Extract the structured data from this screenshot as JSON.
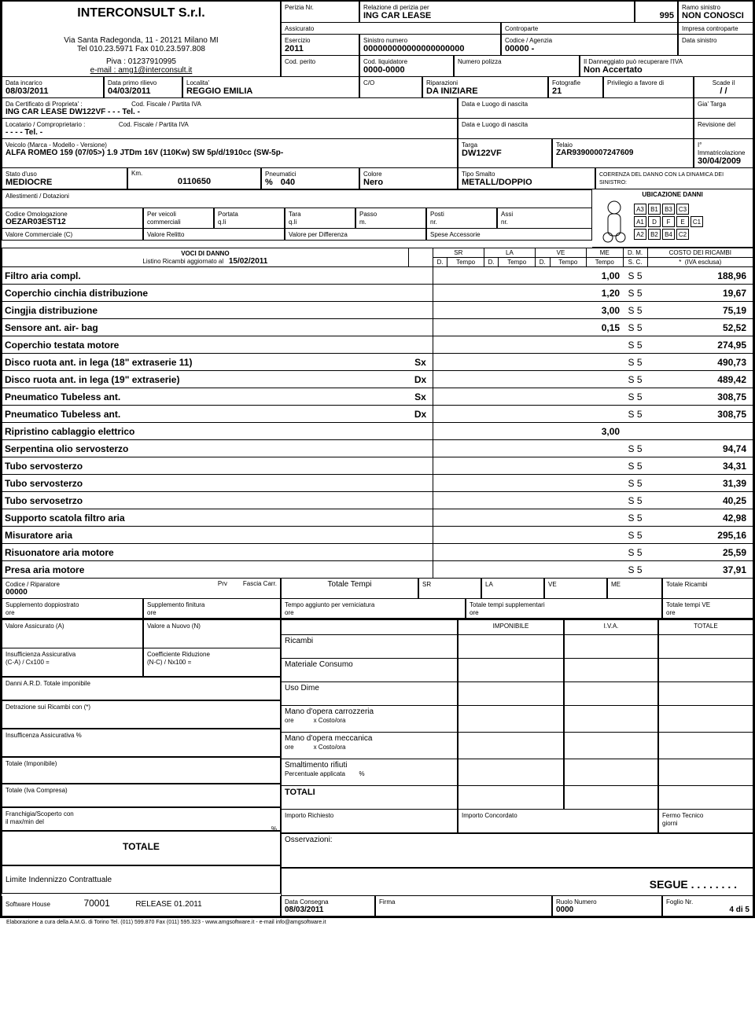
{
  "header": {
    "company": "INTERCONSULT S.r.l.",
    "address": "Via Santa Radegonda, 11 - 20121 Milano MI",
    "tel": "Tel 010.23.5971 Fax 010.23.597.808",
    "piva": "Piva : 01237910995",
    "email_lbl": "e-mail : ",
    "email": "amg1@interconsult.it",
    "perizia_lbl": "Perizia Nr.",
    "relazione_lbl": "Relazione di perizia per",
    "relazione_val": "ING CAR LEASE",
    "num": "995",
    "ramo_lbl": "Ramo sinistro",
    "ramo_val": "NON CONOSCI",
    "assicurato_lbl": "Assicurato",
    "controparte_lbl": "Controparte",
    "impresa_lbl": "Impresa controparte",
    "esercizio_lbl": "Esercizio",
    "esercizio_val": "2011",
    "sinistro_lbl": "Sinistro numero",
    "sinistro_val": "000000000000000000000",
    "codice_lbl": "Codice / Agenzia",
    "codice_val": "00000 -",
    "data_sinistro_lbl": "Data sinistro",
    "cod_perito_lbl": "Cod. perito",
    "cod_liq_lbl": "Cod. liquidatore",
    "cod_liq_val": "0000-0000",
    "num_polizza_lbl": "Numero polizza",
    "dann_lbl": "Il Danneggiato può recuperare l'IVA",
    "dann_val": "Non Accertato"
  },
  "r2": {
    "data_incarico_lbl": "Data incarico",
    "data_incarico_val": "08/03/2011",
    "data_primo_lbl": "Data primo rilievo",
    "data_primo_val": "04/03/2011",
    "localita_lbl": "Localita'",
    "localita_val": "REGGIO EMILIA",
    "co_lbl": "C/O",
    "rip_lbl": "Riparazioni",
    "rip_val": "DA INIZIARE",
    "foto_lbl": "Fotografie",
    "foto_val": "21",
    "priv_lbl": "Privilegio a favore di",
    "scade_lbl": "Scade il",
    "scade_val": "/  /"
  },
  "r3": {
    "cert_lbl": "Da Certificato di Proprieta' :",
    "cod_fisc_lbl": "Cod. Fiscale / Partita IVA",
    "cert_val": "ING CAR LEASE DW122VF -  -  -  Tel.  -",
    "luogo_lbl": "Data e Luogo di nascita",
    "gia_targa_lbl": "Gia' Targa"
  },
  "r4": {
    "loc_lbl": "Locatario / Comproprietario :",
    "loc_val": "-  -  -  -  Tel.  -",
    "rev_lbl": "Revisione del"
  },
  "r5": {
    "veicolo_lbl": "Veicolo (Marca - Modello - Versione)",
    "veicolo_val": "ALFA ROMEO 159 (07/05>) 1.9 JTDm 16V (110Kw) SW 5p/d/1910cc (SW-5p-",
    "targa_lbl": "Targa",
    "targa_val": "DW122VF",
    "telaio_lbl": "Telaio",
    "telaio_val": "ZAR93900007247609",
    "imm_lbl": "I° Immatricolazione",
    "imm_val": "30/04/2009"
  },
  "r6": {
    "stato_lbl": "Stato d'uso",
    "stato_val": "MEDIOCRE",
    "km_lbl": "Km.",
    "km_val": "0110650",
    "pneu_lbl": "Pneumatici",
    "pneu_pct": "%",
    "pneu_val": "040",
    "colore_lbl": "Colore",
    "colore_val": "Nero",
    "tipo_lbl": "Tipo Smalto",
    "tipo_val": "METALL/DOPPIO",
    "coer_lbl": "COERENZA DEL DANNO CON LA DINAMICA DEI SINISTRO:"
  },
  "r7": {
    "all_lbl": "Allestimenti / Dotazioni",
    "ubi_lbl": "UBICAZIONE DANNI"
  },
  "r8": {
    "cod_om_lbl": "Codice Omologazione",
    "cod_om_val": "OEZAR03EST12",
    "per_lbl": "Per veicoli",
    "per_val": "commerciali",
    "portata_lbl": "Portata",
    "portata_val": "q.li",
    "tara_lbl": "Tara",
    "tara_val": "q.li",
    "passo_lbl": "Passo",
    "passo_val": "m.",
    "posti_lbl": "Posti",
    "posti_val": "nr.",
    "assi_lbl": "Assi",
    "assi_val": "nr."
  },
  "r9": {
    "vc_lbl": "Valore Commerciale (C)",
    "vr_lbl": "Valore Relitto",
    "vd_lbl": "Valore per Differenza",
    "sa_lbl": "Spese Accessorie"
  },
  "dmg": {
    "voci_lbl": "VOCI DI DANNO",
    "listino_lbl": "Listino Ricambi aggiornato al",
    "listino_val": "15/02/2011",
    "sr": "SR",
    "la": "LA",
    "ve": "VE",
    "me": "ME",
    "dm": "D. M.",
    "sc": "S. C.",
    "costo": "COSTO DEI RICAMBI",
    "iva": "(IVA esclusa)",
    "d": "D.",
    "tempo": "Tempo",
    "rows": [
      {
        "desc": "Filtro aria compl.",
        "pos": "",
        "me": "1,00",
        "sc": "S  5",
        "cost": "188,96"
      },
      {
        "desc": "Coperchio cinchia distribuzione",
        "pos": "",
        "me": "1,20",
        "sc": "S  5",
        "cost": "19,67"
      },
      {
        "desc": "Cingjia distribuzione",
        "pos": "",
        "me": "3,00",
        "sc": "S  5",
        "cost": "75,19"
      },
      {
        "desc": "Sensore ant. air- bag",
        "pos": "",
        "me": "0,15",
        "sc": "S  5",
        "cost": "52,52"
      },
      {
        "desc": "Coperchio testata motore",
        "pos": "",
        "me": "",
        "sc": "S  5",
        "cost": "274,95"
      },
      {
        "desc": "Disco ruota ant. in lega (18\" extraserie 11)",
        "pos": "Sx",
        "me": "",
        "sc": "S  5",
        "cost": "490,73"
      },
      {
        "desc": "Disco ruota ant. in lega (19\" extraserie)",
        "pos": "Dx",
        "me": "",
        "sc": "S  5",
        "cost": "489,42"
      },
      {
        "desc": "Pneumatico Tubeless ant.",
        "pos": "Sx",
        "me": "",
        "sc": "S  5",
        "cost": "308,75"
      },
      {
        "desc": "Pneumatico Tubeless ant.",
        "pos": "Dx",
        "me": "",
        "sc": "S  5",
        "cost": "308,75"
      },
      {
        "desc": "Ripristino cablaggio elettrico",
        "pos": "",
        "me": "3,00",
        "sc": "",
        "cost": ""
      },
      {
        "desc": "Serpentina olio servosterzo",
        "pos": "",
        "me": "",
        "sc": "S  5",
        "cost": "94,74"
      },
      {
        "desc": "Tubo servosterzo",
        "pos": "",
        "me": "",
        "sc": "S  5",
        "cost": "34,31"
      },
      {
        "desc": "Tubo servosterzo",
        "pos": "",
        "me": "",
        "sc": "S  5",
        "cost": "31,39"
      },
      {
        "desc": "Tubo servosetrzo",
        "pos": "",
        "me": "",
        "sc": "S  5",
        "cost": "40,25"
      },
      {
        "desc": "Supporto scatola filtro aria",
        "pos": "",
        "me": "",
        "sc": "S  5",
        "cost": "42,98"
      },
      {
        "desc": "Misuratore aria",
        "pos": "",
        "me": "",
        "sc": "S  5",
        "cost": "295,16"
      },
      {
        "desc": "Risuonatore aria motore",
        "pos": "",
        "me": "",
        "sc": "S  5",
        "cost": "25,59"
      },
      {
        "desc": "Presa aria motore",
        "pos": "",
        "me": "",
        "sc": "S  5",
        "cost": "37,91"
      }
    ]
  },
  "tot": {
    "codrip_lbl": "Codice / Riparatore",
    "codrip_val": "00000",
    "prv": "Prv",
    "fascia": "Fascia Carr.",
    "tot_tempi": "Totale Tempi",
    "sr": "SR",
    "la": "LA",
    "ve": "VE",
    "me": "ME",
    "tot_ric": "Totale Ricambi",
    "supp_dop": "Supplemento doppiostrato",
    "ore": "ore",
    "supp_fin": "Supplemento finitura",
    "tempo_agg": "Tempo aggiunto per verniciatura",
    "tot_supp": "Totale tempi supplementari",
    "tot_ve": "Totale tempi VE",
    "val_ass": "Valore Assicurato (A)",
    "val_nuovo": "Valore a Nuovo (N)",
    "ricambi": "Ricambi",
    "imponibile": "IMPONIBILE",
    "iva": "I.V.A.",
    "totale": "TOTALE",
    "ins_ass": "Insufficienza Assicurativa",
    "ca": "(C-A) / Cx100 =",
    "coef": "Coefficiente Riduzione",
    "nc": "(N-C) / Nx100 =",
    "mat_cons": "Materiale Consumo",
    "danni_ard": "Danni A.R.D. Totale imponibile",
    "uso_dime": "Uso Dime",
    "detr": "Detrazione sui Ricambi con (*)",
    "mano_carr": "Mano d'opera carrozzeria",
    "x_costo": "x Costo/ora",
    "ins_pct": "Insufficenza Assicurativa  %",
    "mano_mecc": "Mano d'opera meccanica",
    "tot_imp": "Totale (Imponibile)",
    "smalt": "Smaltimento rifiuti",
    "perc_app": "Percentuale applicata",
    "pct": "%",
    "tot_iva": "Totale (Iva Compresa)",
    "totali": "TOTALI",
    "franch": "Franchigia/Scoperto con\nil max/min del",
    "imp_rich": "Importo Richiesto",
    "imp_conc": "Importo Concordato",
    "fermo": "Fermo Tecnico",
    "giorni": "giorni",
    "totale_big": "TOTALE",
    "osserv": "Osservazioni:",
    "limite": "Limite Indennizzo Contrattuale",
    "segue": "SEGUE  . . . . . . . .",
    "sw": "Software House",
    "sw_num": "70001",
    "release": "RELEASE 01.2011",
    "data_cons": "Data Consegna",
    "data_cons_val": "08/03/2011",
    "firma": "Firma",
    "ruolo": "Ruolo Numero",
    "ruolo_val": "0000",
    "foglio": "Foglio Nr.",
    "foglio_val": "4  di       5"
  },
  "footer": "Elaborazione a cura della A.M.G. di Torino Tel. (011) 599.870 Fax (011) 595.323 - www.amgsoftware.it - e-mail info@amgsoftware.it"
}
